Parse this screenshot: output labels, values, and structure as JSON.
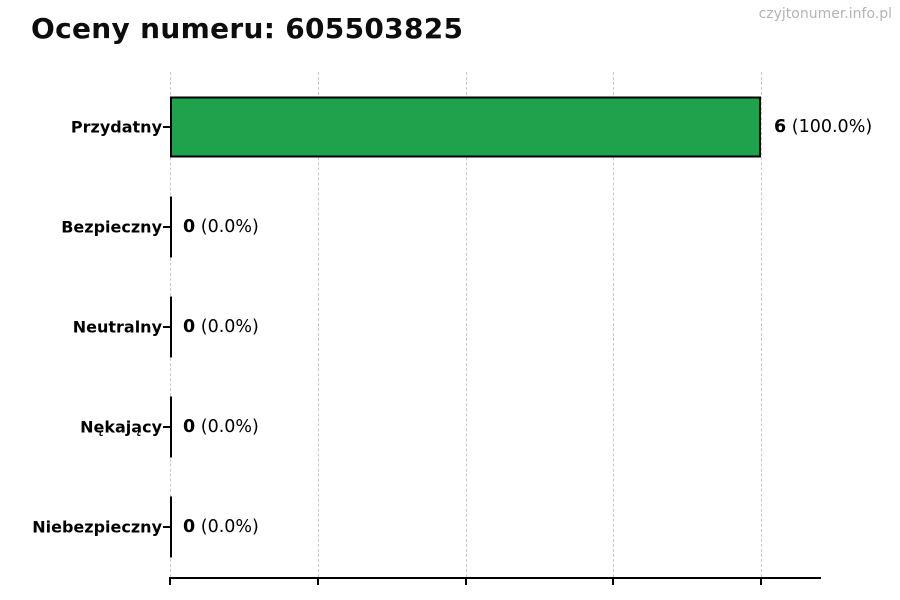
{
  "header": {
    "watermark": "czyjtonumer.info.pl"
  },
  "chart_data": {
    "type": "bar",
    "orientation": "horizontal",
    "title": "Oceny numeru: 605503825",
    "categories": [
      "Przydatny",
      "Bezpieczny",
      "Neutralny",
      "Nękający",
      "Niebezpieczny"
    ],
    "values": [
      6,
      0,
      0,
      0,
      0
    ],
    "value_labels": [
      "6",
      "0",
      "0",
      "0",
      "0"
    ],
    "percent_labels": [
      "(100.0%)",
      "(0.0%)",
      "(0.0%)",
      "(0.0%)",
      "(0.0%)"
    ],
    "xlabel": "",
    "ylabel": "",
    "xlim": [
      0,
      6
    ],
    "x_ticks": [
      0,
      1.5,
      3,
      4.5,
      6
    ],
    "grid": "vertical-dashed",
    "legend": "none",
    "colors": {
      "bar_fill": "#1ea24b",
      "bar_border": "#000000",
      "gridline": "#c9c9c9",
      "axis": "#000000",
      "title_text": "#0d0d0d",
      "watermark_text": "#b4b4b4"
    }
  }
}
